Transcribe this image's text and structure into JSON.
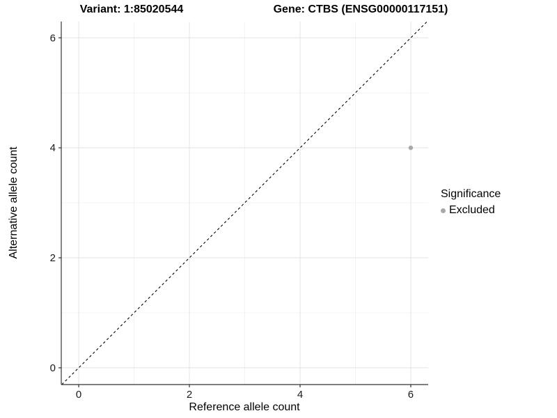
{
  "chart_data": {
    "type": "scatter",
    "title_left": "Variant: 1:85020544",
    "title_right": "Gene: CTBS (ENSG00000117151)",
    "xlabel": "Reference allele count",
    "ylabel": "Alternative allele count",
    "xlim": [
      -0.315,
      6.315
    ],
    "ylim": [
      -0.305,
      6.295
    ],
    "x_ticks": [
      0,
      2,
      4,
      6
    ],
    "y_ticks": [
      0,
      2,
      4,
      6
    ],
    "x_minor_ticks": [
      1,
      3,
      5
    ],
    "y_minor_ticks": [
      1,
      3,
      5
    ],
    "grid": true,
    "series": [
      {
        "name": "Excluded",
        "points": [
          {
            "x": 6,
            "y": 4
          }
        ],
        "color": "#a8a8a8",
        "point_radius": 3.2
      }
    ],
    "reference_line": {
      "type": "identity",
      "label": "y = x",
      "style": "dashed",
      "color": "#000000"
    },
    "legend": {
      "title": "Significance",
      "position": "right",
      "items": [
        {
          "label": "Excluded",
          "color": "#a8a8a8"
        }
      ]
    },
    "colors": {
      "background": "#ffffff",
      "grid_major": "#e3e3e3",
      "grid_minor": "#f0f0f0",
      "axis_line": "#333333",
      "tick_label": "#1a1a1a",
      "text": "#000000"
    }
  }
}
